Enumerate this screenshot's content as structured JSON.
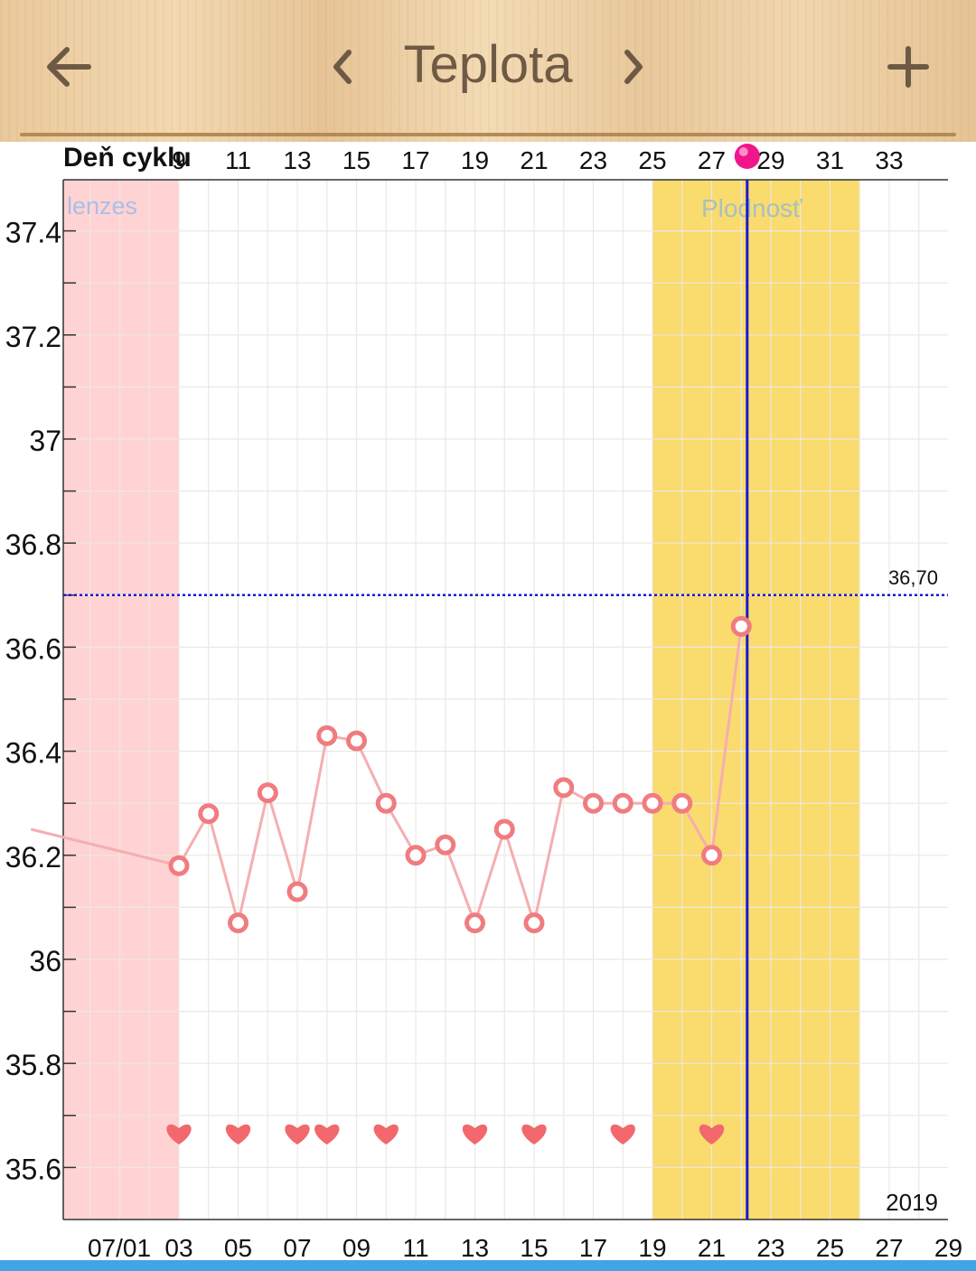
{
  "header": {
    "title": "Teplota",
    "back_icon": "arrow-left-icon",
    "prev_icon": "chevron-left-icon",
    "next_icon": "chevron-right-icon",
    "add_icon": "plus-icon"
  },
  "chart_data": {
    "type": "line",
    "top_axis_title": "Deň cyklu",
    "top_axis_ticks": [
      "9",
      "11",
      "13",
      "15",
      "17",
      "19",
      "21",
      "23",
      "25",
      "27",
      "29",
      "31",
      "33"
    ],
    "date_ticks": [
      "07/01",
      "03",
      "05",
      "07",
      "09",
      "11",
      "13",
      "15",
      "17",
      "19",
      "21",
      "23",
      "25",
      "27",
      "29"
    ],
    "y_ticks": [
      "37.4",
      "37.2",
      "37",
      "36.8",
      "36.6",
      "36.4",
      "36.2",
      "36",
      "35.8",
      "35.6"
    ],
    "ylim": [
      35.5,
      37.5
    ],
    "year_label": "2019",
    "threshold": {
      "value": 36.7,
      "label": "36,70",
      "color": "#1a1ad8"
    },
    "today_day": 28.2,
    "bands": [
      {
        "name": "menstruation",
        "label": "lenzes",
        "from_day": 5,
        "to_day": 9,
        "color": "#ffd3d3"
      },
      {
        "name": "fertility",
        "label": "Plodnosť",
        "from_day": 25,
        "to_day": 32,
        "color": "#f9db6e"
      }
    ],
    "series": [
      {
        "color": "#f07c80",
        "points": [
          {
            "day": 4.0,
            "value": 36.25
          },
          {
            "day": 9,
            "value": 36.18
          },
          {
            "day": 10,
            "value": 36.28
          },
          {
            "day": 11,
            "value": 36.07
          },
          {
            "day": 12,
            "value": 36.32
          },
          {
            "day": 13,
            "value": 36.13
          },
          {
            "day": 14,
            "value": 36.43
          },
          {
            "day": 15,
            "value": 36.42
          },
          {
            "day": 16,
            "value": 36.3
          },
          {
            "day": 17,
            "value": 36.2
          },
          {
            "day": 18,
            "value": 36.22
          },
          {
            "day": 19,
            "value": 36.07
          },
          {
            "day": 20,
            "value": 36.25
          },
          {
            "day": 21,
            "value": 36.07
          },
          {
            "day": 22,
            "value": 36.33
          },
          {
            "day": 23,
            "value": 36.3
          },
          {
            "day": 24,
            "value": 36.3
          },
          {
            "day": 25,
            "value": 36.3
          },
          {
            "day": 26,
            "value": 36.3
          },
          {
            "day": 27,
            "value": 36.2
          },
          {
            "day": 28,
            "value": 36.64
          }
        ]
      }
    ],
    "intercourse_days": [
      9,
      11,
      13,
      14,
      16,
      19,
      21,
      24,
      27
    ],
    "grid": true
  },
  "colors": {
    "menstruation_label": "#a9bfe8",
    "fertility_label": "#a8c0c0",
    "today_line": "#1818d0",
    "marker_dot": "#f0158a",
    "heart": "#f2686d",
    "bottom_bar": "#41a4e4"
  }
}
